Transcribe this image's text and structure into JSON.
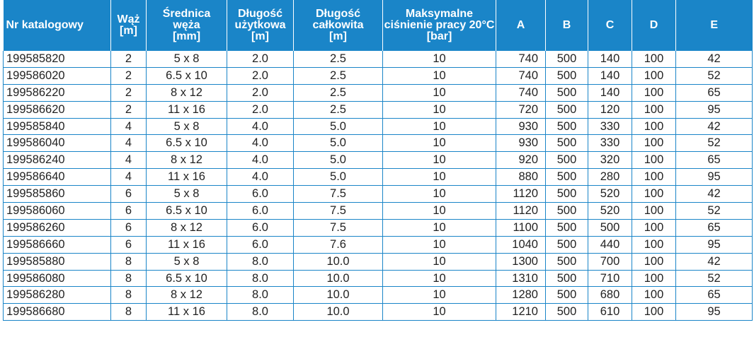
{
  "table": {
    "headers": [
      {
        "lines": [
          "Nr katalogowy"
        ],
        "align": "left"
      },
      {
        "lines": [
          "Wąż",
          "[m]"
        ],
        "align": "center"
      },
      {
        "lines": [
          "Średnica",
          "węża",
          "[mm]"
        ],
        "align": "center"
      },
      {
        "lines": [
          "Długość",
          "użytkowa",
          "[m]"
        ],
        "align": "center"
      },
      {
        "lines": [
          "Długość",
          "całkowita",
          "[m]"
        ],
        "align": "center"
      },
      {
        "lines": [
          "Maksymalne",
          "ciśnienie pracy 20°C",
          "[bar]"
        ],
        "align": "center"
      },
      {
        "lines": [
          "A"
        ],
        "align": "center"
      },
      {
        "lines": [
          "B"
        ],
        "align": "center"
      },
      {
        "lines": [
          "C"
        ],
        "align": "center"
      },
      {
        "lines": [
          "D"
        ],
        "align": "center"
      },
      {
        "lines": [
          "E"
        ],
        "align": "center"
      }
    ],
    "rows": [
      [
        "199585820",
        "2",
        "5 x 8",
        "2.0",
        "2.5",
        "10",
        "740",
        "500",
        "140",
        "100",
        "42"
      ],
      [
        "199586020",
        "2",
        "6.5 x 10",
        "2.0",
        "2.5",
        "10",
        "740",
        "500",
        "140",
        "100",
        "52"
      ],
      [
        "199586220",
        "2",
        "8 x 12",
        "2.0",
        "2.5",
        "10",
        "740",
        "500",
        "140",
        "100",
        "65"
      ],
      [
        "199586620",
        "2",
        "11 x 16",
        "2.0",
        "2.5",
        "10",
        "720",
        "500",
        "120",
        "100",
        "95"
      ],
      [
        "199585840",
        "4",
        "5 x 8",
        "4.0",
        "5.0",
        "10",
        "930",
        "500",
        "330",
        "100",
        "42"
      ],
      [
        "199586040",
        "4",
        "6.5 x 10",
        "4.0",
        "5.0",
        "10",
        "930",
        "500",
        "330",
        "100",
        "52"
      ],
      [
        "199586240",
        "4",
        "8 x 12",
        "4.0",
        "5.0",
        "10",
        "920",
        "500",
        "320",
        "100",
        "65"
      ],
      [
        "199586640",
        "4",
        "11 x 16",
        "4.0",
        "5.0",
        "10",
        "880",
        "500",
        "280",
        "100",
        "95"
      ],
      [
        "199585860",
        "6",
        "5 x 8",
        "6.0",
        "7.5",
        "10",
        "1120",
        "500",
        "520",
        "100",
        "42"
      ],
      [
        "199586060",
        "6",
        "6.5 x 10",
        "6.0",
        "7.5",
        "10",
        "1120",
        "500",
        "520",
        "100",
        "52"
      ],
      [
        "199586260",
        "6",
        "8 x 12",
        "6.0",
        "7.5",
        "10",
        "1100",
        "500",
        "500",
        "100",
        "65"
      ],
      [
        "199586660",
        "6",
        "11 x 16",
        "6.0",
        "7.6",
        "10",
        "1040",
        "500",
        "440",
        "100",
        "95"
      ],
      [
        "199585880",
        "8",
        "5 x 8",
        "8.0",
        "10.0",
        "10",
        "1300",
        "500",
        "700",
        "100",
        "42"
      ],
      [
        "199586080",
        "8",
        "6.5 x 10",
        "8.0",
        "10.0",
        "10",
        "1310",
        "500",
        "710",
        "100",
        "52"
      ],
      [
        "199586280",
        "8",
        "8 x 12",
        "8.0",
        "10.0",
        "10",
        "1280",
        "500",
        "680",
        "100",
        "65"
      ],
      [
        "199586680",
        "8",
        "11 x 16",
        "8.0",
        "10.0",
        "10",
        "1210",
        "500",
        "610",
        "100",
        "95"
      ]
    ],
    "colors": {
      "header_bg": "#1a85c8",
      "header_text": "#ffffff",
      "grid": "#1a85c8",
      "body_text": "#222222"
    }
  }
}
